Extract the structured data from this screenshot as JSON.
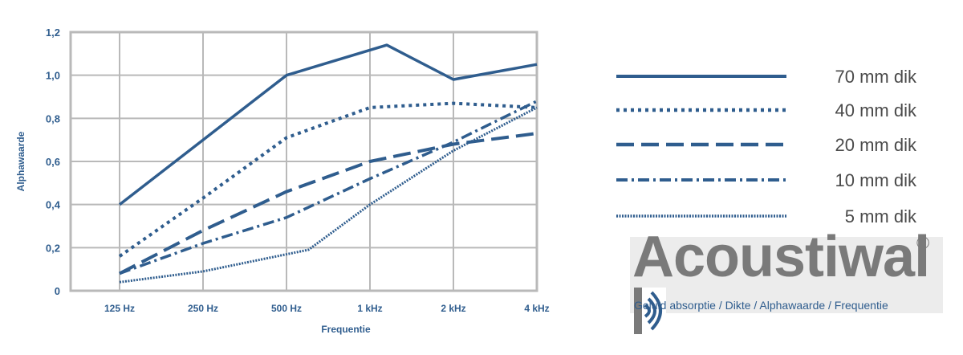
{
  "chart_data": {
    "type": "line",
    "categories": [
      "125 Hz",
      "250 Hz",
      "500 Hz",
      "1 kHz",
      "2 kHz",
      "4 kHz"
    ],
    "ylim": [
      0,
      1.2
    ],
    "yticks": [
      "0",
      "0,2",
      "0,4",
      "0,6",
      "0,8",
      "1,0",
      "1,2"
    ],
    "ylabel": "Alphawaarde",
    "xlabel": "Frequentie",
    "grid": true,
    "legend_position": "right",
    "series": [
      {
        "name": "70 mm dik",
        "style": "solid",
        "x": [
          125,
          250,
          500,
          1150,
          2000,
          4000
        ],
        "values": [
          0.4,
          0.7,
          1.0,
          1.14,
          0.98,
          1.05
        ]
      },
      {
        "name": "40 mm dik",
        "style": "dotted",
        "x": [
          125,
          250,
          500,
          1000,
          2000,
          4000
        ],
        "values": [
          0.16,
          0.43,
          0.71,
          0.85,
          0.87,
          0.85
        ]
      },
      {
        "name": "20 mm dik",
        "style": "dashed",
        "x": [
          125,
          250,
          500,
          1000,
          2000,
          4000
        ],
        "values": [
          0.08,
          0.28,
          0.46,
          0.6,
          0.68,
          0.73
        ]
      },
      {
        "name": "10 mm dik",
        "style": "dashdot",
        "x": [
          125,
          250,
          500,
          1000,
          2000,
          4000
        ],
        "values": [
          0.08,
          0.22,
          0.34,
          0.52,
          0.69,
          0.88
        ]
      },
      {
        "name": "5 mm dik",
        "style": "fine-dotted",
        "x": [
          125,
          250,
          600,
          1000,
          2000,
          4000
        ],
        "values": [
          0.04,
          0.09,
          0.19,
          0.4,
          0.65,
          0.85
        ]
      }
    ],
    "line_color": "#2f5d8e",
    "grid_color": "#b9b9b9"
  },
  "brand": {
    "name": "Acoustiwal",
    "registered": "®",
    "subtitle": "Geluid absorptie / Dikte / Alphawaarde / Frequentie",
    "text_color": "#7a7a7a",
    "accent_color": "#2f5d8e"
  }
}
